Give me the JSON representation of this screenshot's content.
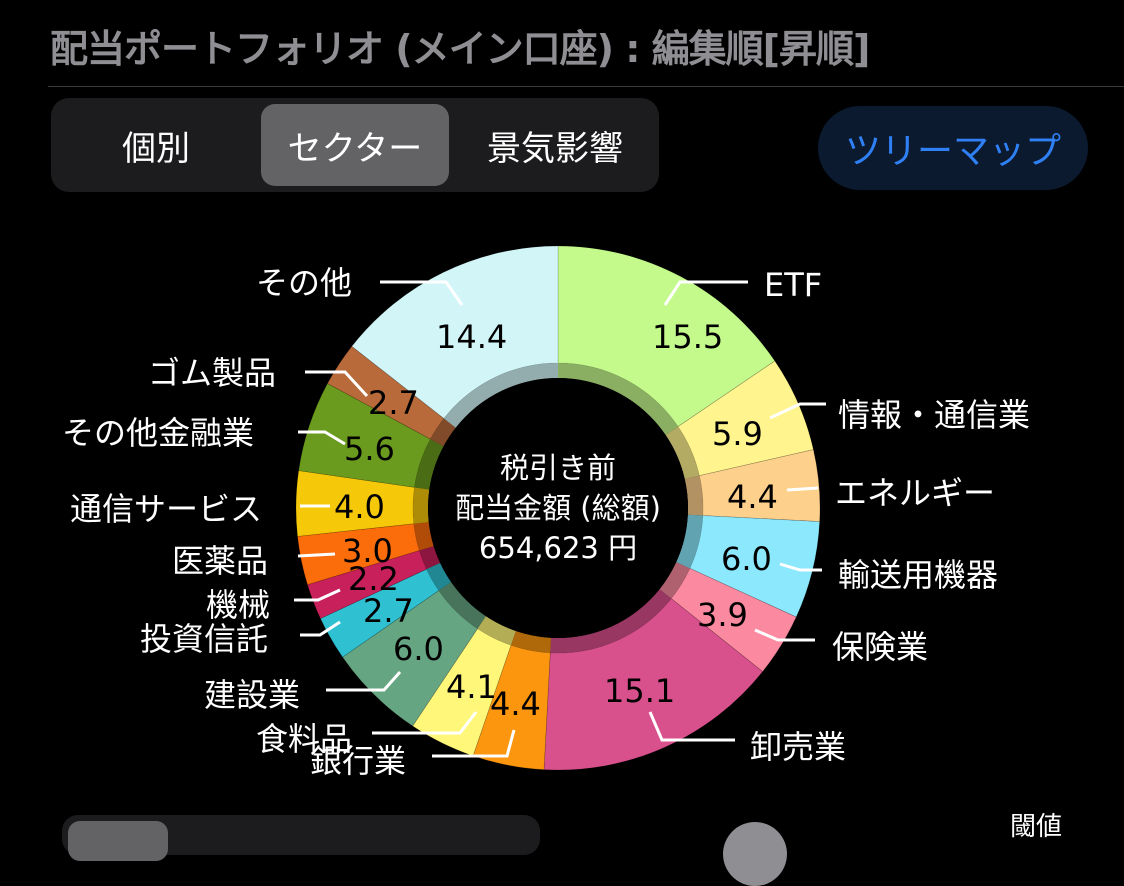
{
  "header": {
    "title": "配当ポートフォリオ (メイン口座) : 編集順[昇順]"
  },
  "segmented_control": {
    "items": [
      {
        "label": "個別",
        "active": false
      },
      {
        "label": "セクター",
        "active": true
      },
      {
        "label": "景気影響",
        "active": false
      }
    ]
  },
  "treemap_button": {
    "label": "ツリーマップ",
    "color": "#2f7ff5"
  },
  "center": {
    "line1": "税引き前",
    "line2": "配当金額 (総額)",
    "line3": "654,623 円"
  },
  "bottom": {
    "threshold_label": "閾値"
  },
  "chart_data": {
    "type": "pie",
    "variant": "donut",
    "title": "税引き前 配当金額 (総額) 654,623 円",
    "unit": "%",
    "start_angle": "12 o'clock",
    "direction": "clockwise",
    "slices": [
      {
        "label": "ETF",
        "value": 15.5,
        "color": "#c4fa8c"
      },
      {
        "label": "情報・通信業",
        "value": 5.9,
        "color": "#fff48e"
      },
      {
        "label": "エネルギー",
        "value": 4.4,
        "color": "#fdd08c"
      },
      {
        "label": "輸送用機器",
        "value": 6.0,
        "color": "#8ce8fd"
      },
      {
        "label": "保険業",
        "value": 3.9,
        "color": "#fb8aa0"
      },
      {
        "label": "卸売業",
        "value": 15.1,
        "color": "#d8508c"
      },
      {
        "label": "銀行業",
        "value": 4.4,
        "color": "#fb960e"
      },
      {
        "label": "食料品",
        "value": 4.1,
        "color": "#fff77a"
      },
      {
        "label": "建設業",
        "value": 6.0,
        "color": "#66a582"
      },
      {
        "label": "投資信託",
        "value": 2.7,
        "color": "#2fc0d2"
      },
      {
        "label": "機械",
        "value": 2.2,
        "color": "#c8205a"
      },
      {
        "label": "医薬品",
        "value": 3.0,
        "color": "#fb6c0a"
      },
      {
        "label": "通信サービス",
        "value": 4.0,
        "color": "#f6c80a"
      },
      {
        "label": "その他金融業",
        "value": 5.6,
        "color": "#6a9a1e"
      },
      {
        "label": "ゴム製品",
        "value": 2.7,
        "color": "#b86a3a"
      },
      {
        "label": "その他",
        "value": 14.4,
        "color": "#d2f6f8"
      }
    ]
  }
}
